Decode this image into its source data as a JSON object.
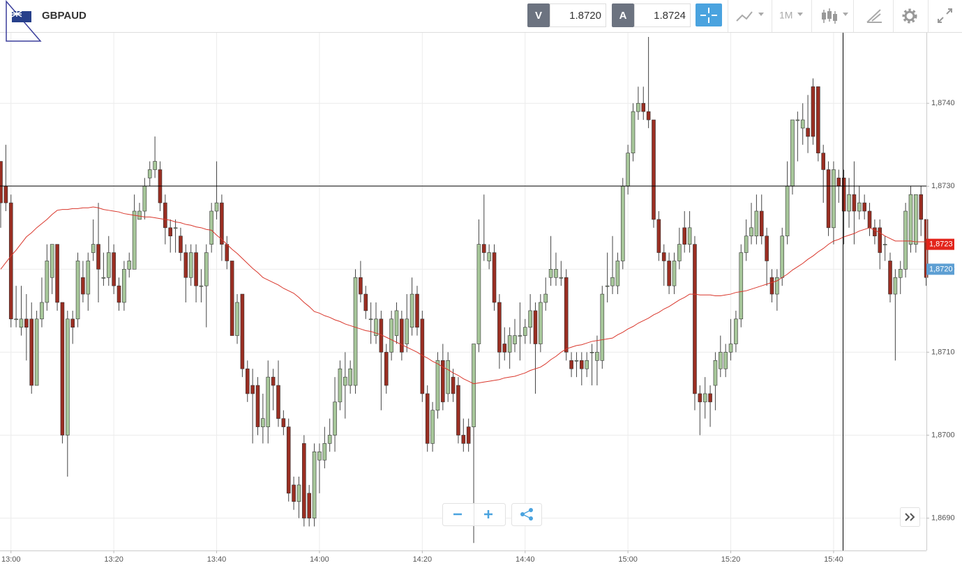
{
  "header": {
    "symbol": "GBPAUD",
    "sell_label": "V",
    "sell": "1.8720",
    "buy_label": "A",
    "buy": "1.8724",
    "timeframe": "1M"
  },
  "chart_data": {
    "type": "candlestick",
    "categories": [
      null,
      null,
      "13:00",
      null,
      null,
      null,
      null,
      null,
      null,
      null,
      null,
      null,
      null,
      null,
      null,
      null,
      null,
      null,
      null,
      null,
      null,
      null,
      "13:20",
      null,
      null,
      null,
      null,
      null,
      null,
      null,
      null,
      null,
      null,
      null,
      null,
      null,
      null,
      null,
      null,
      null,
      null,
      null,
      "13:40",
      null,
      null,
      null,
      null,
      null,
      null,
      null,
      null,
      null,
      null,
      null,
      null,
      null,
      null,
      null,
      null,
      null,
      null,
      null,
      "14:00",
      null,
      null,
      null,
      null,
      null,
      null,
      null,
      null,
      null,
      null,
      null,
      null,
      null,
      null,
      null,
      null,
      null,
      null,
      null,
      "14:20",
      null,
      null,
      null,
      null,
      null,
      null,
      null,
      null,
      null,
      null,
      null,
      null,
      null,
      null,
      null,
      null,
      null,
      null,
      null,
      "14:40",
      null,
      null,
      null,
      null,
      null,
      null,
      null,
      null,
      null,
      null,
      null,
      null,
      null,
      null,
      null,
      null,
      null,
      null,
      null,
      "15:00",
      null,
      null,
      null,
      null,
      null,
      null,
      null,
      null,
      null,
      null,
      null,
      null,
      null,
      null,
      null,
      null,
      null,
      null,
      null,
      "15:20",
      null,
      null,
      null,
      null,
      null,
      null,
      null,
      null,
      null,
      null,
      null,
      null,
      null,
      null,
      null,
      null,
      null,
      null,
      null,
      "15:40",
      null,
      null,
      null,
      null,
      null,
      null,
      null,
      null,
      null,
      null,
      null,
      null,
      null,
      null,
      null,
      null,
      null,
      null
    ],
    "open": [
      1.8733,
      1.873,
      1.8728,
      1.8714,
      1.8713,
      1.8714,
      1.8714,
      1.8706,
      1.8714,
      1.8716,
      1.8719,
      1.8723,
      1.8716,
      1.87,
      1.8714,
      1.8714,
      1.8719,
      1.8717,
      1.8722,
      1.8723,
      1.8719,
      1.8719,
      1.8722,
      1.8718,
      1.8716,
      1.872,
      1.872,
      1.8726,
      1.8727,
      1.8731,
      1.8732,
      1.8732,
      1.8728,
      1.8725,
      1.8725,
      1.8724,
      1.8722,
      1.8719,
      1.8722,
      1.8718,
      1.8718,
      1.8723,
      1.8727,
      1.8728,
      1.8723,
      1.8721,
      1.8712,
      1.8717,
      1.8708,
      1.8706,
      1.8706,
      1.8701,
      1.8701,
      1.8707,
      1.8706,
      1.8702,
      1.8701,
      1.8694,
      1.8692,
      1.8699,
      1.8693,
      1.869,
      1.8697,
      1.8697,
      1.8699,
      1.87,
      1.8704,
      1.8706,
      1.8706,
      1.8706,
      1.8719,
      1.8717,
      1.8714,
      1.8712,
      1.8714,
      1.871,
      1.871,
      1.8712,
      1.8714,
      1.8711,
      1.8713,
      1.8717,
      1.8714,
      1.8705,
      1.8699,
      1.8703,
      1.8709,
      1.8705,
      1.8707,
      1.8706,
      1.87,
      1.8701,
      1.8701,
      1.8711,
      1.8723,
      1.8721,
      1.8722,
      1.8716,
      1.8711,
      1.871,
      1.8711,
      1.8712,
      1.8712,
      1.8713,
      1.8715,
      1.8711,
      1.8716,
      1.8719,
      1.8719,
      1.8719,
      1.8719,
      1.8709,
      1.8709,
      1.8709,
      1.8708,
      1.871,
      1.8709,
      1.8709,
      1.8718,
      1.8718,
      1.8718,
      1.8721,
      1.873,
      1.8734,
      1.8739,
      1.874,
      1.8739,
      1.8738,
      1.8726,
      1.8722,
      1.8721,
      1.8718,
      1.8721,
      1.8725,
      1.8723,
      1.8723,
      1.8705,
      1.8704,
      1.8705,
      1.8706,
      1.8708,
      1.8708,
      1.871,
      1.8711,
      1.8714,
      1.8722,
      1.8724,
      1.8724,
      1.8727,
      1.8724,
      1.8719,
      1.8717,
      1.8719,
      1.8724,
      1.873,
      1.8738,
      1.8737,
      1.8737,
      1.8742,
      1.8742,
      1.8734,
      1.8732,
      1.8725,
      1.8731,
      1.8731,
      1.8727,
      1.8729,
      1.8727,
      1.8728,
      1.8727,
      1.8725,
      1.8725,
      1.8723,
      1.8721,
      1.8717,
      1.8719,
      1.872,
      1.8723,
      1.8723,
      1.8729,
      1.8726
    ],
    "high": [
      1.8733,
      1.8735,
      1.8729,
      1.8718,
      1.8718,
      1.8717,
      1.8716,
      1.8715,
      1.8719,
      1.8723,
      1.8723,
      1.8723,
      1.8716,
      1.8715,
      1.8715,
      1.8722,
      1.8721,
      1.8722,
      1.8726,
      1.8728,
      1.8722,
      1.8724,
      1.8723,
      1.8719,
      1.8721,
      1.8722,
      1.8729,
      1.8728,
      1.8731,
      1.8733,
      1.8736,
      1.8733,
      1.8729,
      1.8726,
      1.8726,
      1.8725,
      1.8723,
      1.8723,
      1.8723,
      1.872,
      1.8723,
      1.8728,
      1.8733,
      1.8729,
      1.8724,
      1.8721,
      1.8717,
      1.8717,
      1.8709,
      1.8708,
      1.8707,
      1.8705,
      1.8709,
      1.8708,
      1.8709,
      1.8703,
      1.8702,
      1.8695,
      1.8695,
      1.87,
      1.8694,
      1.8699,
      1.8699,
      1.8701,
      1.8702,
      1.8707,
      1.8709,
      1.871,
      1.8709,
      1.872,
      1.8721,
      1.8718,
      1.8716,
      1.8716,
      1.8715,
      1.8711,
      1.8715,
      1.8716,
      1.8715,
      1.8717,
      1.8719,
      1.8718,
      1.8715,
      1.8706,
      1.8704,
      1.871,
      1.8711,
      1.871,
      1.8708,
      1.8707,
      1.8702,
      1.8702,
      1.8711,
      1.8726,
      1.8729,
      1.8723,
      1.8723,
      1.8717,
      1.8713,
      1.8713,
      1.8714,
      1.8716,
      1.8714,
      1.8717,
      1.8716,
      1.8717,
      1.8719,
      1.8724,
      1.8722,
      1.8721,
      1.872,
      1.871,
      1.871,
      1.871,
      1.871,
      1.8711,
      1.8712,
      1.8718,
      1.8722,
      1.8724,
      1.8722,
      1.8731,
      1.8735,
      1.874,
      1.8742,
      1.8742,
      1.8748,
      1.8738,
      1.8727,
      1.8723,
      1.8722,
      1.8722,
      1.8725,
      1.8727,
      1.8727,
      1.8724,
      1.8706,
      1.8707,
      1.8706,
      1.871,
      1.8712,
      1.8711,
      1.8714,
      1.8715,
      1.8723,
      1.8726,
      1.8728,
      1.8729,
      1.8729,
      1.8725,
      1.872,
      1.872,
      1.8725,
      1.8733,
      1.8738,
      1.8739,
      1.874,
      1.8741,
      1.8743,
      1.8742,
      1.8735,
      1.8733,
      1.8733,
      1.8732,
      1.8732,
      1.8731,
      1.8733,
      1.873,
      1.8729,
      1.8728,
      1.8726,
      1.8726,
      1.8724,
      1.8722,
      1.872,
      1.8721,
      1.8728,
      1.873,
      1.8729,
      1.873,
      1.8726
    ],
    "low": [
      1.8725,
      1.8727,
      1.8713,
      1.8713,
      1.8712,
      1.8709,
      1.8705,
      1.8706,
      1.8713,
      1.8715,
      1.8717,
      1.8715,
      1.8699,
      1.8695,
      1.8711,
      1.8713,
      1.8716,
      1.8715,
      1.8721,
      1.8716,
      1.8718,
      1.8718,
      1.8717,
      1.8715,
      1.8715,
      1.8719,
      1.872,
      1.8726,
      1.8726,
      1.873,
      1.8731,
      1.8727,
      1.8723,
      1.8722,
      1.8722,
      1.8721,
      1.8716,
      1.8718,
      1.8716,
      1.8716,
      1.8713,
      1.8722,
      1.8726,
      1.8721,
      1.872,
      1.8712,
      1.8711,
      1.8707,
      1.8704,
      1.8699,
      1.87,
      1.8699,
      1.8699,
      1.8703,
      1.8701,
      1.87,
      1.8692,
      1.8691,
      1.869,
      1.8689,
      1.8689,
      1.8689,
      1.8693,
      1.8696,
      1.8698,
      1.8698,
      1.8703,
      1.8702,
      1.8705,
      1.8705,
      1.8716,
      1.8714,
      1.8711,
      1.8711,
      1.8703,
      1.8705,
      1.8709,
      1.8711,
      1.8709,
      1.871,
      1.8712,
      1.8712,
      1.8704,
      1.8698,
      1.8698,
      1.8702,
      1.8703,
      1.8704,
      1.8704,
      1.8699,
      1.8698,
      1.8698,
      1.8687,
      1.871,
      1.8721,
      1.872,
      1.8715,
      1.8708,
      1.8709,
      1.8708,
      1.871,
      1.8709,
      1.8711,
      1.8711,
      1.8705,
      1.871,
      1.8715,
      1.8718,
      1.8718,
      1.8718,
      1.8709,
      1.8707,
      1.8707,
      1.8706,
      1.8707,
      1.8706,
      1.8706,
      1.8708,
      1.8716,
      1.8717,
      1.8717,
      1.872,
      1.8729,
      1.8733,
      1.8738,
      1.8738,
      1.8737,
      1.8725,
      1.8721,
      1.8718,
      1.8717,
      1.8717,
      1.872,
      1.8722,
      1.8722,
      1.8703,
      1.87,
      1.8702,
      1.8701,
      1.8703,
      1.8707,
      1.8707,
      1.8709,
      1.871,
      1.8713,
      1.8721,
      1.8723,
      1.8723,
      1.8723,
      1.8718,
      1.8716,
      1.8715,
      1.8718,
      1.8723,
      1.8729,
      1.8733,
      1.8735,
      1.8734,
      1.8735,
      1.8733,
      1.8728,
      1.8724,
      1.8723,
      1.8728,
      1.8723,
      1.8725,
      1.8723,
      1.8726,
      1.8726,
      1.8724,
      1.8723,
      1.872,
      1.8721,
      1.8716,
      1.8709,
      1.8717,
      1.8719,
      1.8722,
      1.8722,
      1.8724,
      1.8718
    ],
    "close": [
      1.8728,
      1.8728,
      1.8714,
      1.8714,
      1.8714,
      1.8713,
      1.8706,
      1.8714,
      1.8716,
      1.8721,
      1.8723,
      1.8716,
      1.87,
      1.8714,
      1.8713,
      1.8721,
      1.8717,
      1.8721,
      1.8723,
      1.872,
      1.8719,
      1.8722,
      1.8718,
      1.8716,
      1.872,
      1.8721,
      1.8727,
      1.8727,
      1.873,
      1.8732,
      1.8733,
      1.8728,
      1.8725,
      1.8724,
      1.8725,
      1.8722,
      1.8719,
      1.8722,
      1.8718,
      1.8718,
      1.8722,
      1.8727,
      1.8728,
      1.8723,
      1.8721,
      1.8712,
      1.8716,
      1.8708,
      1.8705,
      1.8705,
      1.8701,
      1.8702,
      1.8707,
      1.8706,
      1.8702,
      1.8701,
      1.8693,
      1.8692,
      1.8694,
      1.869,
      1.869,
      1.8698,
      1.8698,
      1.8699,
      1.87,
      1.8704,
      1.8708,
      1.8707,
      1.8708,
      1.8719,
      1.8717,
      1.8715,
      1.8714,
      1.8714,
      1.871,
      1.8706,
      1.8714,
      1.8715,
      1.871,
      1.8714,
      1.8717,
      1.8713,
      1.8705,
      1.8699,
      1.8703,
      1.8709,
      1.8704,
      1.8709,
      1.8705,
      1.87,
      1.8699,
      1.8699,
      1.8711,
      1.8723,
      1.8722,
      1.8722,
      1.8716,
      1.871,
      1.871,
      1.8712,
      1.8712,
      1.8712,
      1.8713,
      1.8715,
      1.8711,
      1.8716,
      1.8717,
      1.872,
      1.872,
      1.8719,
      1.871,
      1.8708,
      1.8709,
      1.8708,
      1.8709,
      1.871,
      1.871,
      1.8717,
      1.8718,
      1.8719,
      1.8721,
      1.873,
      1.8734,
      1.8739,
      1.874,
      1.8739,
      1.8738,
      1.8726,
      1.8722,
      1.8721,
      1.8718,
      1.8721,
      1.8723,
      1.8723,
      1.8725,
      1.8705,
      1.8704,
      1.8705,
      1.8704,
      1.8709,
      1.871,
      1.871,
      1.8711,
      1.8714,
      1.8722,
      1.8724,
      1.8725,
      1.8727,
      1.8724,
      1.8721,
      1.8717,
      1.8719,
      1.8724,
      1.873,
      1.8738,
      1.8738,
      1.8738,
      1.8736,
      1.8736,
      1.8734,
      1.8732,
      1.8725,
      1.8732,
      1.873,
      1.8727,
      1.8729,
      1.8727,
      1.8728,
      1.8727,
      1.8725,
      1.8724,
      1.8722,
      1.8723,
      1.8717,
      1.8719,
      1.872,
      1.8727,
      1.8729,
      1.8729,
      1.8726,
      1.8719
    ],
    "up_color": "#a7c79a",
    "down_color": "#9a2e22",
    "series": [
      {
        "color": "#d9362b",
        "values": [
          1.872,
          1.87208,
          1.87216,
          1.87223,
          1.87231,
          1.87239,
          1.87244,
          1.8725,
          1.87255,
          1.8726,
          1.87266,
          1.87271,
          1.87272,
          1.87272,
          1.87273,
          1.87273,
          1.87274,
          1.87274,
          1.87275,
          1.87274,
          1.87272,
          1.87271,
          1.8727,
          1.87269,
          1.87267,
          1.87266,
          1.87265,
          1.87264,
          1.87263,
          1.87263,
          1.87262,
          1.87261,
          1.8726,
          1.87259,
          1.87257,
          1.87256,
          1.87254,
          1.87253,
          1.87251,
          1.8725,
          1.87248,
          1.87247,
          1.87241,
          1.87236,
          1.8723,
          1.87224,
          1.87219,
          1.87213,
          1.87207,
          1.87201,
          1.87196,
          1.8719,
          1.87187,
          1.87184,
          1.87181,
          1.87177,
          1.87174,
          1.87171,
          1.87166,
          1.8716,
          1.87155,
          1.87149,
          1.87147,
          1.87144,
          1.87142,
          1.87139,
          1.87137,
          1.87134,
          1.87132,
          1.8713,
          1.87128,
          1.87126,
          1.87125,
          1.87123,
          1.87121,
          1.87118,
          1.87115,
          1.87112,
          1.87109,
          1.87106,
          1.87103,
          1.871,
          1.87096,
          1.87093,
          1.87089,
          1.87086,
          1.87082,
          1.87079,
          1.87075,
          1.87072,
          1.87068,
          1.87065,
          1.87062,
          1.87063,
          1.87064,
          1.87065,
          1.87066,
          1.87067,
          1.87069,
          1.8707,
          1.87071,
          1.87073,
          1.87075,
          1.87078,
          1.8708,
          1.87082,
          1.87086,
          1.87091,
          1.87095,
          1.871,
          1.87104,
          1.87106,
          1.87108,
          1.87109,
          1.87111,
          1.87113,
          1.87114,
          1.87115,
          1.87116,
          1.87117,
          1.87121,
          1.87124,
          1.87128,
          1.87131,
          1.87135,
          1.87138,
          1.87141,
          1.87145,
          1.87148,
          1.87152,
          1.87155,
          1.87159,
          1.87163,
          1.87166,
          1.8717,
          1.8717,
          1.87169,
          1.87169,
          1.87169,
          1.87168,
          1.87168,
          1.87169,
          1.8717,
          1.87172,
          1.87173,
          1.87174,
          1.87176,
          1.87178,
          1.8718,
          1.87182,
          1.87184,
          1.87186,
          1.8719,
          1.87194,
          1.87199,
          1.87203,
          1.87207,
          1.87212,
          1.87216,
          1.87221,
          1.87225,
          1.8723,
          1.87234,
          1.87236,
          1.87239,
          1.87241,
          1.87243,
          1.87246,
          1.87248,
          1.8725,
          1.87247,
          1.87244,
          1.8724,
          1.87237,
          1.87234,
          1.87234,
          1.87234,
          1.87234,
          1.87233,
          1.87233,
          1.87233
        ]
      }
    ],
    "ylim": [
      1.86861,
      1.87485
    ],
    "yticks": [
      {
        "value": 1.869,
        "label": "1,8690"
      },
      {
        "value": 1.87,
        "label": "1,8700"
      },
      {
        "value": 1.871,
        "label": "1,8710"
      },
      {
        "value": 1.872,
        "label": "1,8720"
      },
      {
        "value": 1.873,
        "label": "1,8730"
      },
      {
        "value": 1.874,
        "label": "1,8740"
      }
    ],
    "price_tags": [
      {
        "value": 1.8723,
        "label": "1,8723",
        "color": "#e3241b"
      },
      {
        "value": 1.872,
        "label": "1,8720",
        "color": "#5d9fd3"
      }
    ],
    "grid": true
  }
}
